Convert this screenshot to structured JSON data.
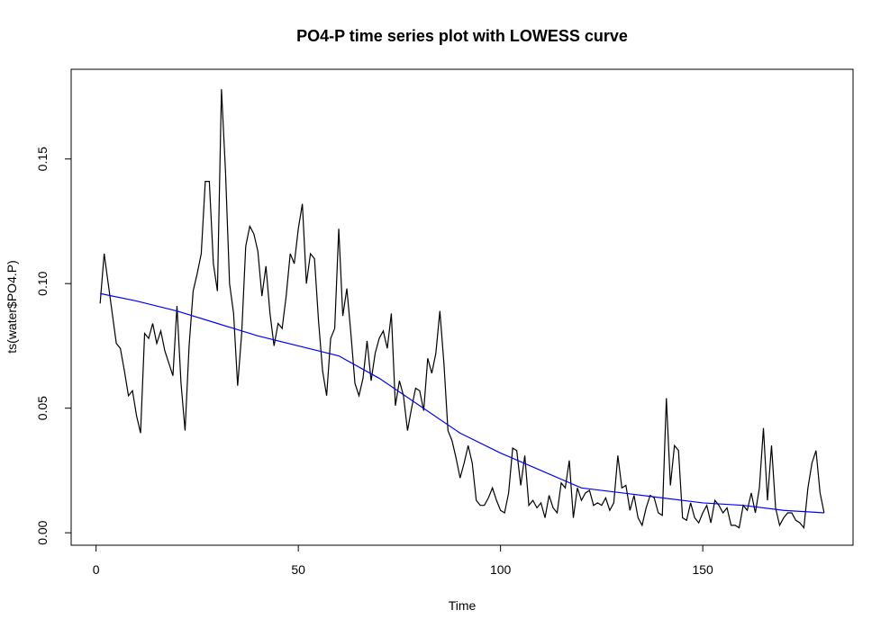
{
  "chart_data": {
    "type": "line",
    "title": "PO4-P time series plot with LOWESS curve",
    "x_label": "Time",
    "y_label": "ts(water$PO4.P)",
    "x": [
      1,
      2,
      3,
      4,
      5,
      6,
      7,
      8,
      9,
      10,
      11,
      12,
      13,
      14,
      15,
      16,
      17,
      18,
      19,
      20,
      21,
      22,
      23,
      24,
      25,
      26,
      27,
      28,
      29,
      30,
      31,
      32,
      33,
      34,
      35,
      36,
      37,
      38,
      39,
      40,
      41,
      42,
      43,
      44,
      45,
      46,
      47,
      48,
      49,
      50,
      51,
      52,
      53,
      54,
      55,
      56,
      57,
      58,
      59,
      60,
      61,
      62,
      63,
      64,
      65,
      66,
      67,
      68,
      69,
      70,
      71,
      72,
      73,
      74,
      75,
      76,
      77,
      78,
      79,
      80,
      81,
      82,
      83,
      84,
      85,
      86,
      87,
      88,
      89,
      90,
      91,
      92,
      93,
      94,
      95,
      96,
      97,
      98,
      99,
      100,
      101,
      102,
      103,
      104,
      105,
      106,
      107,
      108,
      109,
      110,
      111,
      112,
      113,
      114,
      115,
      116,
      117,
      118,
      119,
      120,
      121,
      122,
      123,
      124,
      125,
      126,
      127,
      128,
      129,
      130,
      131,
      132,
      133,
      134,
      135,
      136,
      137,
      138,
      139,
      140,
      141,
      142,
      143,
      144,
      145,
      146,
      147,
      148,
      149,
      150,
      151,
      152,
      153,
      154,
      155,
      156,
      157,
      158,
      159,
      160,
      161,
      162,
      163,
      164,
      165,
      166,
      167,
      168,
      169,
      170,
      171,
      172,
      173,
      174,
      175,
      176,
      177,
      178,
      179,
      180
    ],
    "series": [
      {
        "color": "#000000",
        "values": [
          0.092,
          0.112,
          0.1,
          0.088,
          0.076,
          0.074,
          0.065,
          0.055,
          0.057,
          0.047,
          0.04,
          0.08,
          0.078,
          0.084,
          0.076,
          0.081,
          0.073,
          0.068,
          0.063,
          0.091,
          0.06,
          0.041,
          0.075,
          0.097,
          0.104,
          0.112,
          0.141,
          0.141,
          0.108,
          0.097,
          0.178,
          0.145,
          0.1,
          0.088,
          0.059,
          0.08,
          0.115,
          0.123,
          0.12,
          0.113,
          0.095,
          0.107,
          0.088,
          0.075,
          0.084,
          0.082,
          0.095,
          0.112,
          0.108,
          0.122,
          0.132,
          0.1,
          0.112,
          0.11,
          0.085,
          0.065,
          0.055,
          0.078,
          0.082,
          0.122,
          0.087,
          0.098,
          0.08,
          0.06,
          0.055,
          0.062,
          0.077,
          0.061,
          0.072,
          0.078,
          0.081,
          0.074,
          0.088,
          0.051,
          0.061,
          0.055,
          0.041,
          0.05,
          0.058,
          0.057,
          0.049,
          0.07,
          0.064,
          0.072,
          0.089,
          0.068,
          0.041,
          0.037,
          0.03,
          0.022,
          0.028,
          0.035,
          0.028,
          0.013,
          0.011,
          0.011,
          0.014,
          0.018,
          0.013,
          0.009,
          0.008,
          0.016,
          0.034,
          0.033,
          0.019,
          0.031,
          0.011,
          0.013,
          0.01,
          0.012,
          0.006,
          0.015,
          0.01,
          0.008,
          0.02,
          0.018,
          0.029,
          0.006,
          0.018,
          0.013,
          0.016,
          0.017,
          0.011,
          0.012,
          0.011,
          0.014,
          0.009,
          0.012,
          0.031,
          0.018,
          0.019,
          0.009,
          0.015,
          0.006,
          0.003,
          0.01,
          0.015,
          0.014,
          0.008,
          0.007,
          0.054,
          0.019,
          0.035,
          0.033,
          0.006,
          0.005,
          0.012,
          0.006,
          0.004,
          0.008,
          0.011,
          0.004,
          0.013,
          0.011,
          0.008,
          0.01,
          0.003,
          0.003,
          0.002,
          0.011,
          0.009,
          0.016,
          0.008,
          0.018,
          0.042,
          0.013,
          0.035,
          0.01,
          0.003,
          0.006,
          0.008,
          0.008,
          0.005,
          0.004,
          0.002,
          0.018,
          0.028,
          0.033,
          0.016,
          0.008
        ]
      },
      {
        "color": "#0000ff",
        "x": [
          1,
          10,
          20,
          30,
          40,
          50,
          60,
          70,
          80,
          90,
          100,
          110,
          120,
          130,
          140,
          150,
          160,
          170,
          180
        ],
        "values": [
          0.096,
          0.093,
          0.089,
          0.084,
          0.079,
          0.075,
          0.071,
          0.062,
          0.051,
          0.04,
          0.032,
          0.025,
          0.018,
          0.016,
          0.014,
          0.012,
          0.011,
          0.009,
          0.008
        ]
      }
    ],
    "xlim": [
      -6.16,
      187.16
    ],
    "ylim": [
      -0.005,
      0.186
    ],
    "xticks": [
      0,
      50,
      100,
      150
    ],
    "yticks": [
      {
        "value": 0,
        "label": "0.00"
      },
      {
        "value": 0.05,
        "label": "0.05"
      },
      {
        "value": 0.1,
        "label": "0.10"
      },
      {
        "value": 0.15,
        "label": "0.15"
      }
    ]
  }
}
